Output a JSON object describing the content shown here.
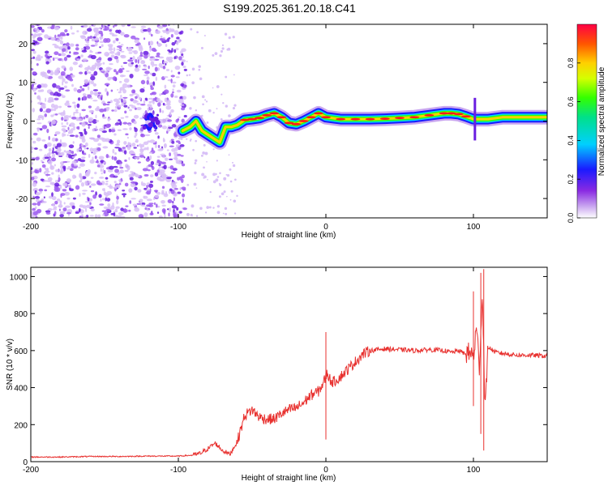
{
  "title": "S199.2025.361.20.18.C41",
  "colors": {
    "snr_line": "#e8312f",
    "axis": "#000000",
    "band_low": "#8a2be2",
    "band_high": "#ff0000"
  },
  "chart_data": [
    {
      "type": "heatmap",
      "xlabel": "Height of straight line (km)",
      "ylabel": "Frequency (Hz)",
      "xlim": [
        -200,
        150
      ],
      "ylim": [
        -25,
        25
      ],
      "x_ticks": [
        {
          "value": -200,
          "label": "-200"
        },
        {
          "value": -100,
          "label": "-100"
        },
        {
          "value": 0,
          "label": "0"
        },
        {
          "value": 100,
          "label": "100"
        }
      ],
      "y_ticks": [
        {
          "value": -20,
          "label": "-20"
        },
        {
          "value": -10,
          "label": "-10"
        },
        {
          "value": 0,
          "label": "0"
        },
        {
          "value": 10,
          "label": "10"
        },
        {
          "value": 20,
          "label": "20"
        }
      ],
      "colorbar": {
        "label": "Normalized spectral amplitude",
        "range": [
          0,
          1
        ],
        "ticks": [
          {
            "value": 0.0,
            "label": "0.0"
          },
          {
            "value": 0.2,
            "label": "0.2"
          },
          {
            "value": 0.4,
            "label": "0.4"
          },
          {
            "value": 0.6,
            "label": "0.6"
          },
          {
            "value": 0.8,
            "label": "0.8"
          }
        ]
      },
      "ridge": {
        "description_values": "center frequency (Hz) of the dominant band vs height (km)",
        "x": [
          -97,
          -92,
          -88,
          -84,
          -80,
          -76,
          -72,
          -68,
          -64,
          -60,
          -55,
          -50,
          -45,
          -40,
          -35,
          -30,
          -25,
          -20,
          -15,
          -10,
          -5,
          0,
          10,
          20,
          30,
          40,
          50,
          60,
          70,
          80,
          85,
          90,
          95,
          100,
          105,
          110,
          120,
          130,
          140,
          150
        ],
        "y": [
          -2.5,
          -1.5,
          0,
          -2.5,
          -3.5,
          -4.5,
          -5.5,
          -1.5,
          -1.5,
          -1,
          0.3,
          0.5,
          0.8,
          1.5,
          2,
          1,
          -0.5,
          -0.8,
          0,
          1,
          2,
          1,
          0.5,
          0.5,
          0.5,
          0.6,
          0.8,
          1,
          1.5,
          2,
          2,
          1.8,
          1.2,
          0.5,
          0.5,
          0.5,
          1,
          1,
          1,
          1
        ]
      }
    },
    {
      "type": "line",
      "xlabel": "Height of straight line (km)",
      "ylabel": "SNR (10 * v/v)",
      "xlim": [
        -200,
        150
      ],
      "ylim": [
        0,
        1050
      ],
      "x_ticks": [
        {
          "value": -200,
          "label": "-200"
        },
        {
          "value": -100,
          "label": "-100"
        },
        {
          "value": 0,
          "label": "0"
        },
        {
          "value": 100,
          "label": "100"
        }
      ],
      "y_ticks": [
        {
          "value": 0,
          "label": "0"
        },
        {
          "value": 200,
          "label": "200"
        },
        {
          "value": 400,
          "label": "400"
        },
        {
          "value": 600,
          "label": "600"
        },
        {
          "value": 800,
          "label": "800"
        },
        {
          "value": 1000,
          "label": "1000"
        }
      ],
      "series": [
        {
          "name": "SNR",
          "x": [
            -200,
            -180,
            -160,
            -140,
            -120,
            -110,
            -100,
            -90,
            -85,
            -80,
            -75,
            -70,
            -65,
            -60,
            -55,
            -50,
            -45,
            -40,
            -35,
            -30,
            -25,
            -20,
            -15,
            -10,
            -5,
            -2,
            0,
            1,
            3,
            5,
            10,
            15,
            20,
            25,
            30,
            40,
            50,
            60,
            70,
            80,
            85,
            90,
            95,
            98,
            100,
            102,
            104,
            106,
            108,
            110,
            115,
            120,
            130,
            140,
            150
          ],
          "y": [
            25,
            25,
            28,
            28,
            30,
            30,
            30,
            35,
            45,
            70,
            100,
            60,
            40,
            110,
            250,
            280,
            240,
            230,
            230,
            260,
            280,
            290,
            320,
            360,
            380,
            420,
            460,
            480,
            440,
            430,
            460,
            500,
            540,
            580,
            600,
            610,
            605,
            600,
            605,
            600,
            590,
            600,
            580,
            590,
            560,
            720,
            520,
            900,
            300,
            620,
            590,
            585,
            575,
            575,
            570
          ]
        }
      ],
      "spikes": [
        {
          "x": 0,
          "low": 120,
          "high": 700
        },
        {
          "x": 100,
          "low": 300,
          "high": 920
        },
        {
          "x": 105,
          "low": 150,
          "high": 1020
        },
        {
          "x": 107,
          "low": 60,
          "high": 1040
        }
      ]
    }
  ]
}
